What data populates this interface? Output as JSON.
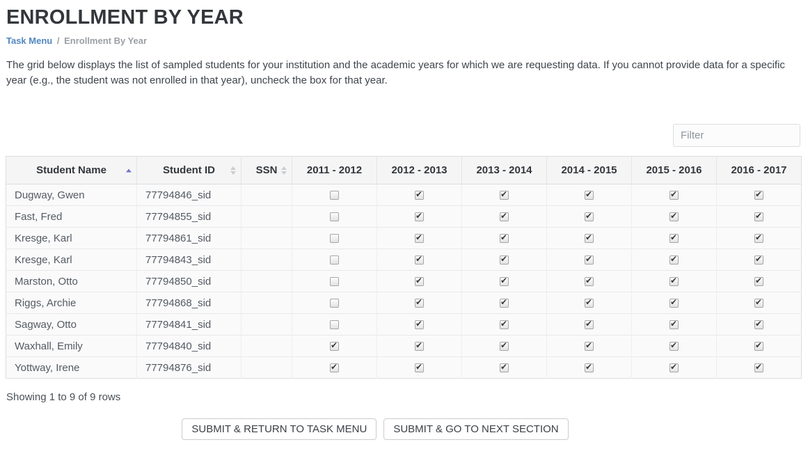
{
  "page": {
    "title": "ENROLLMENT BY YEAR",
    "breadcrumb": {
      "link": "Task Menu",
      "separator": "/",
      "current": "Enrollment By Year"
    },
    "description": "The grid below displays the list of sampled students for your institution and the academic years for which we are requesting data. If you cannot provide data for a specific year (e.g., the student was not enrolled in that year), uncheck the box for that year."
  },
  "filter": {
    "placeholder": "Filter"
  },
  "table": {
    "columns": [
      {
        "key": "name",
        "label": "Student Name",
        "sortable": true,
        "sort": "asc"
      },
      {
        "key": "id",
        "label": "Student ID",
        "sortable": true,
        "sort": "both"
      },
      {
        "key": "ssn",
        "label": "SSN",
        "sortable": true,
        "sort": "both"
      },
      {
        "key": "y2011_2012",
        "label": "2011 - 2012",
        "sortable": false
      },
      {
        "key": "y2012_2013",
        "label": "2012 - 2013",
        "sortable": false
      },
      {
        "key": "y2013_2014",
        "label": "2013 - 2014",
        "sortable": false
      },
      {
        "key": "y2014_2015",
        "label": "2014 - 2015",
        "sortable": false
      },
      {
        "key": "y2015_2016",
        "label": "2015 - 2016",
        "sortable": false
      },
      {
        "key": "y2016_2017",
        "label": "2016 - 2017",
        "sortable": false
      }
    ],
    "rows": [
      {
        "name": "Dugway, Gwen",
        "id": "77794846_sid",
        "ssn": "",
        "years": [
          false,
          true,
          true,
          true,
          true,
          true
        ]
      },
      {
        "name": "Fast, Fred",
        "id": "77794855_sid",
        "ssn": "",
        "years": [
          false,
          true,
          true,
          true,
          true,
          true
        ]
      },
      {
        "name": "Kresge, Karl",
        "id": "77794861_sid",
        "ssn": "",
        "years": [
          false,
          true,
          true,
          true,
          true,
          true
        ]
      },
      {
        "name": "Kresge, Karl",
        "id": "77794843_sid",
        "ssn": "",
        "years": [
          false,
          true,
          true,
          true,
          true,
          true
        ]
      },
      {
        "name": "Marston, Otto",
        "id": "77794850_sid",
        "ssn": "",
        "years": [
          false,
          true,
          true,
          true,
          true,
          true
        ]
      },
      {
        "name": "Riggs, Archie",
        "id": "77794868_sid",
        "ssn": "",
        "years": [
          false,
          true,
          true,
          true,
          true,
          true
        ]
      },
      {
        "name": "Sagway, Otto",
        "id": "77794841_sid",
        "ssn": "",
        "years": [
          false,
          true,
          true,
          true,
          true,
          true
        ]
      },
      {
        "name": "Waxhall, Emily",
        "id": "77794840_sid",
        "ssn": "",
        "years": [
          true,
          true,
          true,
          true,
          true,
          true
        ]
      },
      {
        "name": "Yottway, Irene",
        "id": "77794876_sid",
        "ssn": "",
        "years": [
          true,
          true,
          true,
          true,
          true,
          true
        ]
      }
    ],
    "summary": "Showing 1 to 9 of 9 rows"
  },
  "buttons": [
    {
      "label": "SUBMIT & RETURN TO TASK MENU"
    },
    {
      "label": "SUBMIT & GO TO NEXT SECTION"
    }
  ],
  "colors": {
    "heading": "#33373b",
    "link": "#5287c0",
    "sort_active": "#7077c8",
    "sort_inactive": "#cccdd1",
    "header_bg": "#f5f5f6",
    "row_bg": "#fafafb",
    "border": "#dcdde0"
  }
}
